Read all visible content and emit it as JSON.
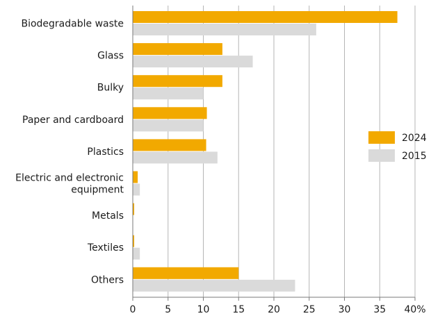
{
  "chart_data": {
    "type": "bar",
    "orientation": "horizontal",
    "categories": [
      [
        "Biodegradable waste"
      ],
      [
        "Glass"
      ],
      [
        "Bulky"
      ],
      [
        "Paper and cardboard"
      ],
      [
        "Plastics"
      ],
      [
        "Electric and electronic",
        "equipment"
      ],
      [
        "Metals"
      ],
      [
        "Textiles"
      ],
      [
        "Others"
      ]
    ],
    "series": [
      {
        "name": "2024",
        "color": "#f2a900",
        "values": [
          37.5,
          12.7,
          12.7,
          10.5,
          10.4,
          0.7,
          0.2,
          0.2,
          15
        ]
      },
      {
        "name": "2015",
        "color": "#dadada",
        "values": [
          26,
          17,
          10,
          10,
          12,
          1,
          0,
          1,
          23
        ]
      }
    ],
    "xlim": [
      0,
      40
    ],
    "xticks": [
      "0",
      "5",
      "10",
      "15",
      "20",
      "25",
      "30",
      "35",
      "40%"
    ],
    "grid": true,
    "legend_position": "right",
    "title": "",
    "xlabel": "",
    "ylabel": ""
  }
}
